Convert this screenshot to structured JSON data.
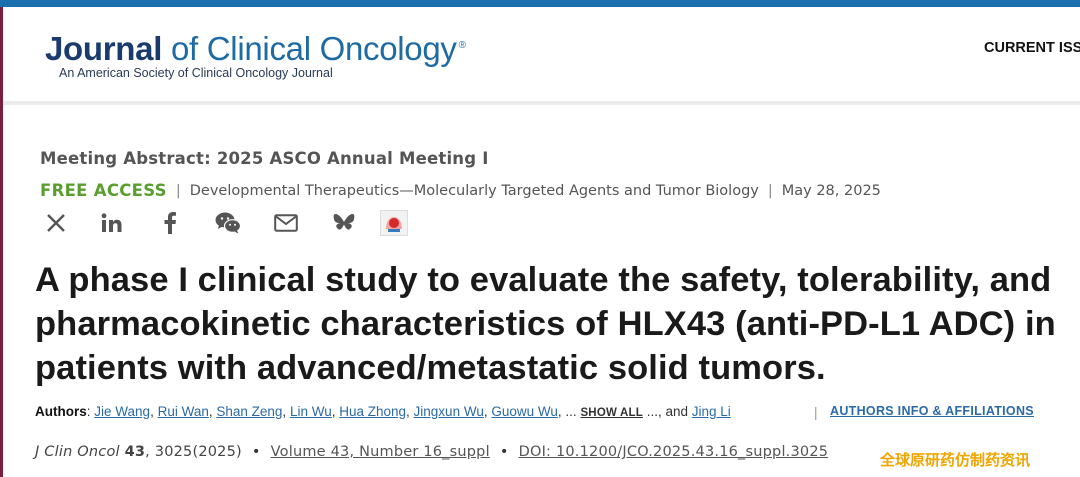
{
  "header": {
    "logo_main": "Journal",
    "logo_rest": "of Clinical Oncology",
    "logo_mark": "®",
    "logo_subtitle": "An American Society of Clinical Oncology Journal",
    "nav_current_issue": "CURRENT ISS"
  },
  "article": {
    "meta_type": "Meeting Abstract: 2025 ASCO Annual Meeting I",
    "access": "FREE ACCESS",
    "section": "Developmental Therapeutics—Molecularly Targeted Agents and Tumor Biology",
    "date": "May 28, 2025",
    "title": "A phase I clinical study to evaluate the safety, tolerability, and pharmacokinetic characteristics of HLX43 (anti-PD-L1 ADC) in patients with advanced/metastatic solid tumors."
  },
  "share": {
    "icons": [
      "x-icon",
      "linkedin-icon",
      "facebook-icon",
      "wechat-icon",
      "email-icon",
      "bluesky-icon",
      "mendeley-icon"
    ]
  },
  "authors": {
    "label": "Authors",
    "colon": ":",
    "list": [
      "Jie Wang",
      "Rui Wan",
      "Shan Zeng",
      "Lin Wu",
      "Hua Zhong",
      "Jingxun Wu",
      "Guowu Wu"
    ],
    "ellipsis": "...",
    "show_all": "SHOW ALL",
    "ellipsis_after": "..., and",
    "last_author": "Jing Li",
    "affiliations": "AUTHORS INFO & AFFILIATIONS"
  },
  "citation": {
    "journal": "J Clin Oncol",
    "volume_bold": "43",
    "pages": ", 3025(2025)",
    "volume_link": "Volume 43, Number 16_suppl",
    "doi": "DOI: 10.1200/JCO.2025.43.16_suppl.3025"
  },
  "watermark": "全球原研药仿制药资讯",
  "colors": {
    "brand_blue": "#1e6ba3",
    "free_green": "#5a9e2f",
    "link_blue": "#2a6aa8"
  }
}
